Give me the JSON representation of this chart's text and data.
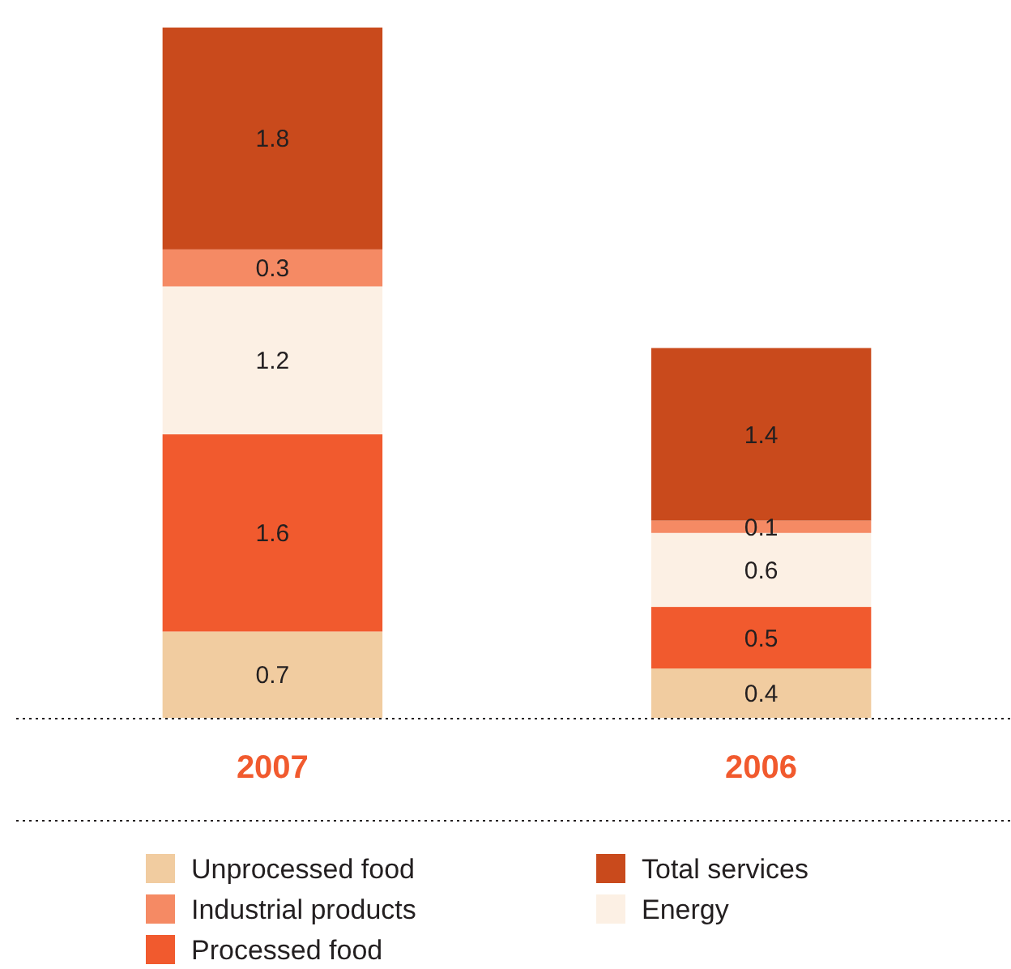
{
  "chart_data": {
    "type": "bar",
    "stacked": true,
    "data_labels": true,
    "legend": "bottom",
    "categories": [
      "2007",
      "2006"
    ],
    "series": [
      {
        "name": "Unprocessed food",
        "color": "#f1cca0",
        "values": [
          0.7,
          0.4
        ]
      },
      {
        "name": "Processed food",
        "color": "#f15a2e",
        "values": [
          1.6,
          0.5
        ]
      },
      {
        "name": "Energy",
        "color": "#fcf0e4",
        "values": [
          1.2,
          0.6
        ]
      },
      {
        "name": "Industrial products",
        "color": "#f58a64",
        "values": [
          0.3,
          0.1
        ]
      },
      {
        "name": "Total services",
        "color": "#c94a1c",
        "values": [
          1.8,
          1.4
        ]
      }
    ]
  }
}
